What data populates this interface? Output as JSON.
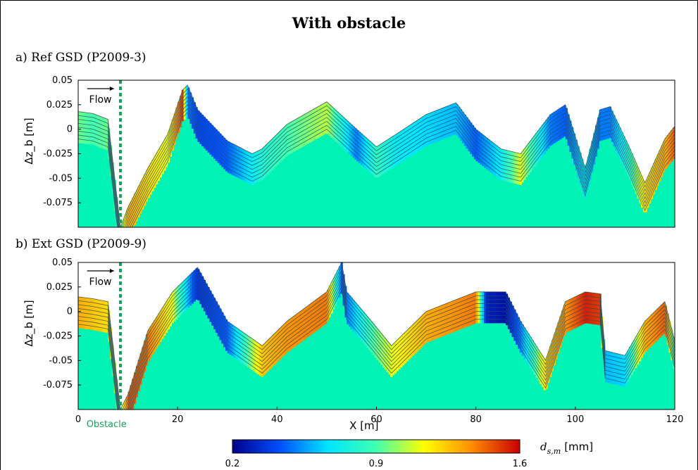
{
  "figure": {
    "title": "With obstacle",
    "panel_a_label": "a) Ref GSD (P2009-3)",
    "panel_b_label": "b) Ext GSD (P2009-9)",
    "flow_label": "Flow",
    "obstacle_label": "Obstacle",
    "obstacle_x": 8.5,
    "colorbar": {
      "label_symbol": "d",
      "label_subscript": "s,m",
      "label_unit": "[mm]",
      "ticks": [
        "0.2",
        "0.9",
        "1.6"
      ],
      "range": [
        0.2,
        1.6
      ],
      "colors": [
        "#00008b",
        "#0050ff",
        "#00e6ff",
        "#40ffb0",
        "#ffff00",
        "#ff8c00",
        "#c80000"
      ]
    },
    "fill_color": "#00f2b4"
  },
  "chart_data": [
    {
      "type": "area",
      "panel": "a",
      "title": "a) Ref GSD (P2009-3)",
      "xlabel": "X [m]",
      "ylabel": "Δz_b [m]",
      "xlim": [
        0,
        120
      ],
      "ylim": [
        -0.1,
        0.05
      ],
      "yticks": [
        "0.05",
        "0.025",
        "0",
        "-0.025",
        "-0.05",
        "-0.075"
      ],
      "ytick_values": [
        0.05,
        0.025,
        0,
        -0.025,
        -0.05,
        -0.075
      ],
      "x": [
        0,
        3,
        6,
        8.5,
        10,
        14,
        18,
        21,
        22,
        24,
        30,
        35,
        37,
        42,
        50,
        56,
        60,
        64,
        70,
        76,
        80,
        85,
        89,
        95,
        98,
        102,
        105,
        107,
        111,
        114,
        118,
        120
      ],
      "bed": [
        0.018,
        0.016,
        0.01,
        -0.1,
        -0.08,
        -0.04,
        -0.005,
        0.04,
        0.045,
        0.02,
        -0.012,
        -0.025,
        -0.02,
        0.005,
        0.028,
        0.0,
        -0.018,
        -0.005,
        0.015,
        0.027,
        0.0,
        -0.02,
        -0.025,
        0.015,
        0.025,
        -0.04,
        0.02,
        0.023,
        -0.02,
        -0.055,
        -0.01,
        0.003
      ],
      "surface_dsm": [
        0.95,
        0.9,
        0.95,
        0.9,
        1.3,
        1.2,
        1.1,
        1.5,
        0.5,
        0.4,
        0.45,
        0.7,
        0.8,
        0.9,
        1.05,
        0.5,
        0.85,
        0.7,
        0.65,
        0.6,
        0.45,
        0.7,
        1.1,
        0.5,
        0.45,
        0.7,
        0.5,
        0.5,
        0.85,
        1.2,
        1.3,
        1.45
      ]
    },
    {
      "type": "area",
      "panel": "b",
      "title": "b) Ext GSD (P2009-9)",
      "xlabel": "X [m]",
      "ylabel": "Δz_b [m]",
      "xlim": [
        0,
        120
      ],
      "ylim": [
        -0.1,
        0.05
      ],
      "xticks": [
        "0",
        "20",
        "40",
        "60",
        "80",
        "100",
        "120"
      ],
      "xtick_values": [
        0,
        20,
        40,
        60,
        80,
        100,
        120
      ],
      "yticks": [
        "0.05",
        "0.025",
        "0",
        "-0.025",
        "-0.05",
        "-0.075"
      ],
      "ytick_values": [
        0.05,
        0.025,
        0,
        -0.025,
        -0.05,
        -0.075
      ],
      "x": [
        0,
        3,
        6,
        8.5,
        10,
        14,
        19,
        23,
        24,
        30,
        37,
        42,
        50,
        53,
        54,
        59,
        63,
        70,
        80,
        82,
        86,
        89,
        94,
        98,
        102,
        105,
        106,
        110,
        114,
        118,
        120
      ],
      "bed": [
        0.015,
        0.013,
        0.01,
        -0.1,
        -0.085,
        -0.02,
        0.02,
        0.04,
        0.045,
        -0.01,
        -0.035,
        -0.01,
        0.02,
        0.05,
        0.02,
        -0.01,
        -0.035,
        0.0,
        0.02,
        0.02,
        0.02,
        -0.01,
        -0.05,
        0.01,
        0.02,
        0.018,
        -0.04,
        -0.045,
        -0.01,
        0.01,
        -0.03
      ],
      "surface_dsm": [
        1.3,
        1.25,
        1.2,
        0.9,
        1.45,
        1.4,
        1.1,
        0.45,
        0.35,
        0.45,
        1.25,
        1.35,
        1.4,
        0.45,
        0.5,
        0.9,
        1.1,
        1.3,
        1.4,
        0.3,
        0.25,
        0.5,
        1.2,
        1.35,
        1.55,
        1.5,
        0.6,
        0.65,
        1.3,
        1.45,
        0.85
      ]
    }
  ]
}
